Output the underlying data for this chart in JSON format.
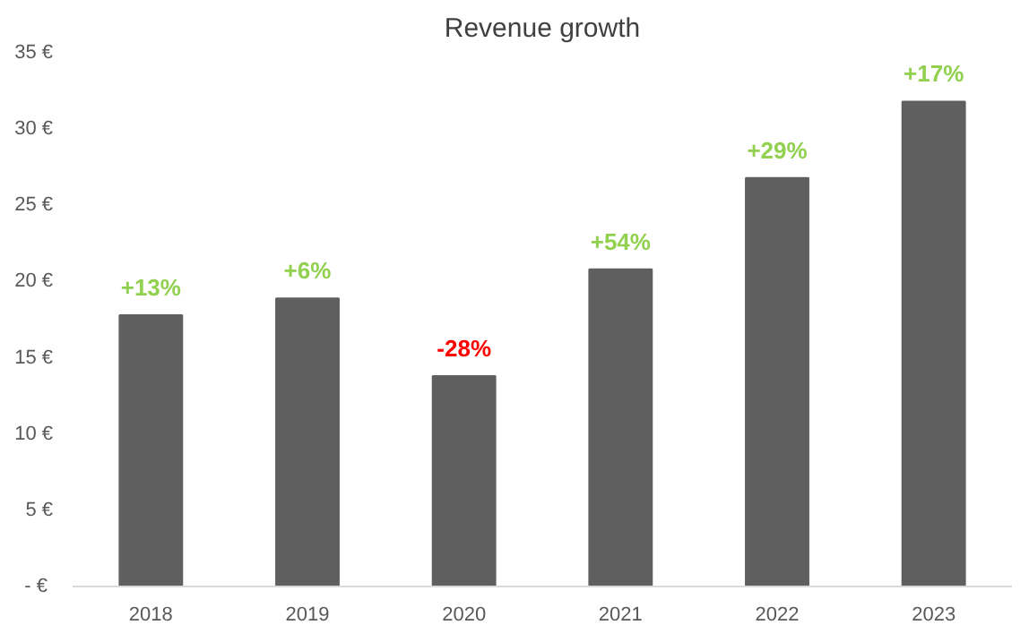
{
  "chart_data": {
    "type": "bar",
    "title": "Revenue growth",
    "categories": [
      "2018",
      "2019",
      "2020",
      "2021",
      "2022",
      "2023"
    ],
    "values": [
      17.8,
      18.9,
      13.8,
      20.8,
      26.8,
      31.8
    ],
    "color": "#5f5f5f",
    "annotations": [
      {
        "text": "+13%",
        "x": "2018",
        "y": 17.8
      },
      {
        "text": "+6%",
        "x": "2019",
        "y": 18.9
      },
      {
        "text": "-28%",
        "x": "2020",
        "y": 13.8
      },
      {
        "text": "+54%",
        "x": "2021",
        "y": 20.8
      },
      {
        "text": "+29%",
        "x": "2022",
        "y": 26.8
      },
      {
        "text": "+17%",
        "x": "2023",
        "y": 31.8
      }
    ],
    "ylim": [
      0,
      35
    ],
    "yticks": [
      {
        "value": 0,
        "label": "-  €"
      },
      {
        "value": 5,
        "label": "5 €"
      },
      {
        "value": 10,
        "label": "10 €"
      },
      {
        "value": 15,
        "label": "15 €"
      },
      {
        "value": 20,
        "label": "20 €"
      },
      {
        "value": 25,
        "label": "25 €"
      },
      {
        "value": 30,
        "label": "30 €"
      },
      {
        "value": 35,
        "label": "35 €"
      }
    ],
    "grid": false
  }
}
